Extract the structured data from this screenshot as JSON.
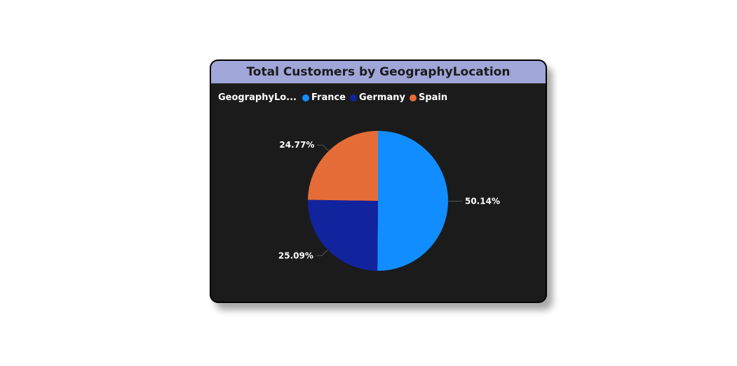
{
  "card": {
    "title": "Total Customers by GeographyLocation"
  },
  "legend": {
    "title": "GeographyLo...",
    "items": [
      {
        "label": "France",
        "color": "#118dff"
      },
      {
        "label": "Germany",
        "color": "#12239e"
      },
      {
        "label": "Spain",
        "color": "#e66c37"
      }
    ]
  },
  "chart_data": {
    "type": "pie",
    "title": "Total Customers by GeographyLocation",
    "legend_title": "GeographyLo...",
    "legend_position": "top-left",
    "categories": [
      "France",
      "Germany",
      "Spain"
    ],
    "values": [
      50.14,
      25.09,
      24.77
    ],
    "data_labels": [
      "50.14%",
      "25.09%",
      "24.77%"
    ],
    "colors": [
      "#118dff",
      "#12239e",
      "#e66c37"
    ]
  }
}
